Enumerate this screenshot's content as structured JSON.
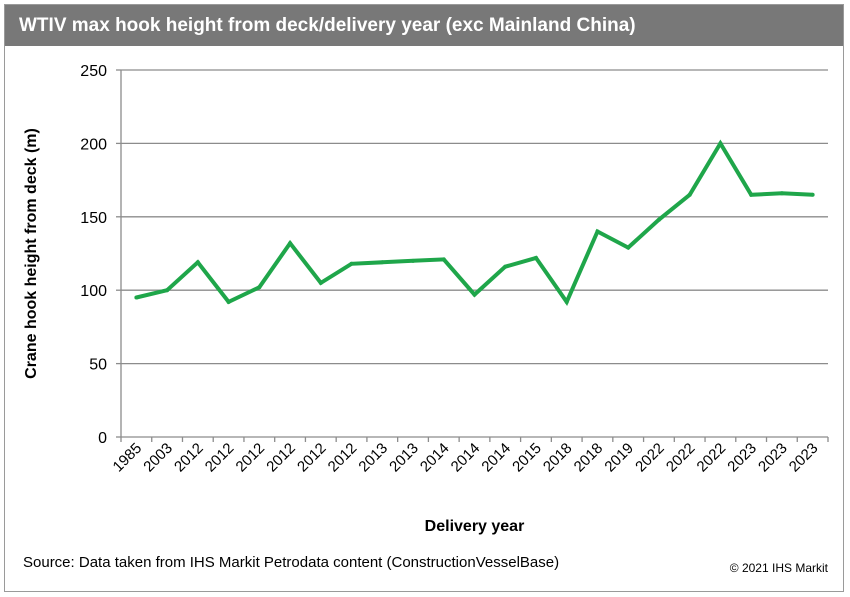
{
  "header": {
    "title": "WTIV max hook height from deck/delivery year (exc Mainland China)"
  },
  "footer": {
    "source": "Source: Data taken from IHS Markit Petrodata content (ConstructionVesselBase)",
    "copyright": "© 2021 IHS Markit"
  },
  "colors": {
    "line": "#1fa64a",
    "grid": "#8c8c8c",
    "title_bar": "#787878"
  },
  "chart_data": {
    "type": "line",
    "title": "WTIV max hook height from deck/delivery year (exc Mainland China)",
    "xlabel": "Delivery year",
    "ylabel": "Crane hook height from deck (m)",
    "ylim": [
      0,
      250
    ],
    "yticks": [
      0,
      50,
      100,
      150,
      200,
      250
    ],
    "grid": true,
    "legend": "none",
    "categories": [
      "1985",
      "2003",
      "2012",
      "2012",
      "2012",
      "2012",
      "2012",
      "2012",
      "2013",
      "2013",
      "2014",
      "2014",
      "2014",
      "2015",
      "2018",
      "2018",
      "2019",
      "2022",
      "2022",
      "2022",
      "2023",
      "2023",
      "2023"
    ],
    "series": [
      {
        "values": [
          95,
          100,
          119,
          92,
          102,
          132,
          105,
          118,
          119,
          120,
          121,
          97,
          116,
          122,
          92,
          140,
          129,
          148,
          165,
          200,
          165,
          166,
          165
        ]
      }
    ]
  }
}
